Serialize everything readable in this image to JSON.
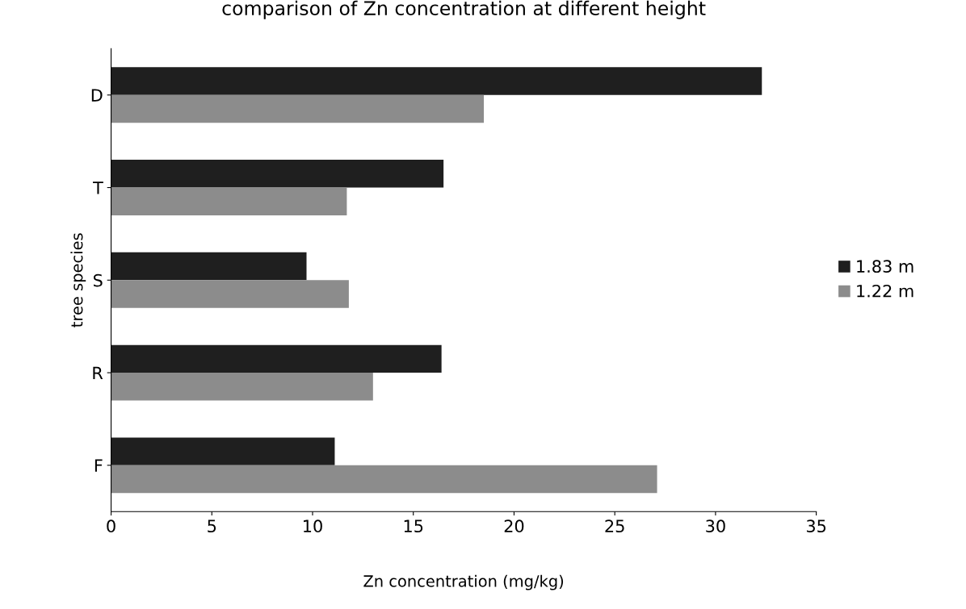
{
  "chart_data": {
    "type": "bar",
    "orientation": "horizontal",
    "title": "comparison of Zn concentration at different height",
    "xlabel": "Zn concentration (mg/kg)",
    "ylabel": "tree species",
    "categories": [
      "D",
      "T",
      "S",
      "R",
      "F"
    ],
    "series": [
      {
        "name": "1.83 m",
        "color": "#1f1f1f",
        "values": [
          32.3,
          16.5,
          9.7,
          16.4,
          11.1
        ]
      },
      {
        "name": "1.22 m",
        "color": "#8c8c8c",
        "values": [
          18.5,
          11.7,
          11.8,
          13.0,
          27.1
        ]
      }
    ],
    "xlim": [
      0,
      35
    ],
    "xticks": [
      0,
      5,
      10,
      15,
      20,
      25,
      30,
      35
    ],
    "grid": false,
    "legend": "right"
  }
}
